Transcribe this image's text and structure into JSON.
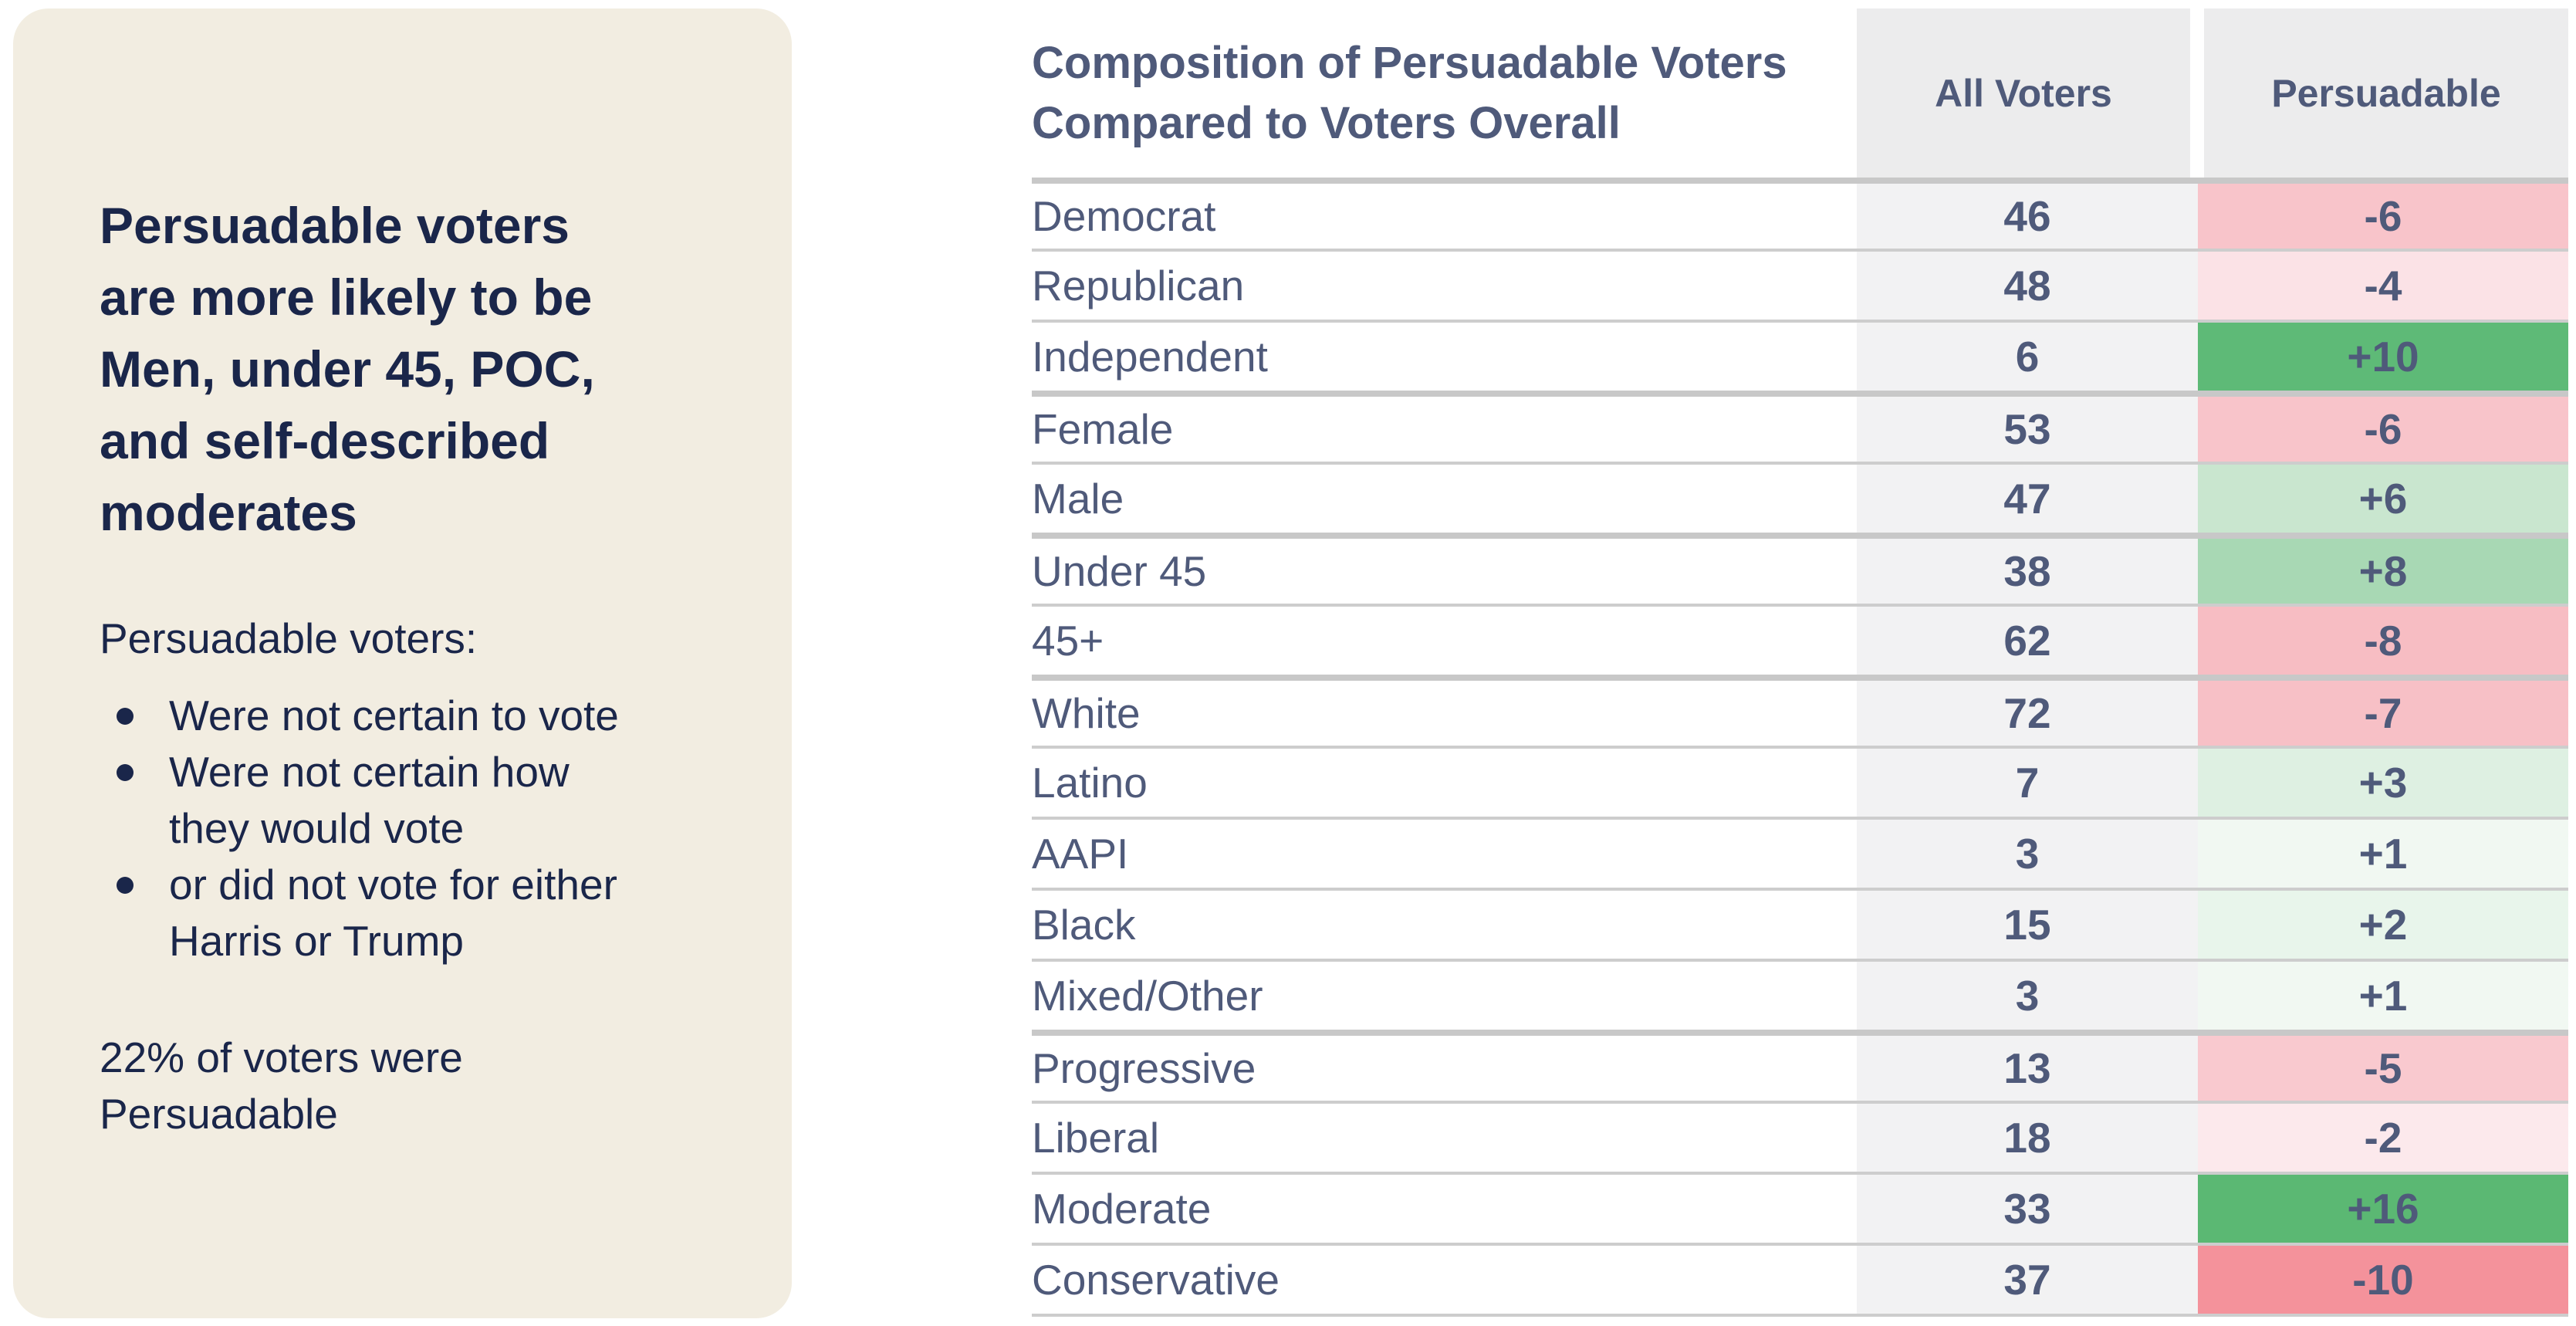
{
  "sidebar": {
    "heading_lines": [
      "Persuadable voters",
      "are more likely to be",
      "Men, under 45, POC,",
      "and self-described",
      "moderates"
    ],
    "intro": "Persuadable voters:",
    "bullets": [
      [
        "Were not certain to vote"
      ],
      [
        "Were not certain how",
        "they would vote"
      ],
      [
        "or did not vote for either",
        "Harris or Trump"
      ]
    ],
    "footnote_lines": [
      "22% of voters were",
      "Persuadable"
    ]
  },
  "table": {
    "title_lines": [
      "Composition of Persuadable Voters",
      "Compared to Voters Overall"
    ],
    "col_all": "All Voters",
    "col_pers": "Persuadable",
    "rows": [
      {
        "label": "Democrat",
        "all": "46",
        "delta": "-6",
        "bg": "#f8c4ca",
        "group_start": true
      },
      {
        "label": "Republican",
        "all": "48",
        "delta": "-4",
        "bg": "#fbe2e6",
        "group_start": false
      },
      {
        "label": "Independent",
        "all": "6",
        "delta": "+10",
        "bg": "#5eba77",
        "group_start": false
      },
      {
        "label": "Female",
        "all": "53",
        "delta": "-6",
        "bg": "#f8c4ca",
        "group_start": true
      },
      {
        "label": "Male",
        "all": "47",
        "delta": "+6",
        "bg": "#c9e6cf",
        "group_start": false
      },
      {
        "label": "Under 45",
        "all": "38",
        "delta": "+8",
        "bg": "#a8d8b4",
        "group_start": true
      },
      {
        "label": "45+",
        "all": "62",
        "delta": "-8",
        "bg": "#f7bdc3",
        "group_start": false
      },
      {
        "label": "White",
        "all": "72",
        "delta": "-7",
        "bg": "#f7c0c6",
        "group_start": true
      },
      {
        "label": "Latino",
        "all": "7",
        "delta": "+3",
        "bg": "#def0e2",
        "group_start": false
      },
      {
        "label": "AAPI",
        "all": "3",
        "delta": "+1",
        "bg": "#f1f8f2",
        "group_start": false
      },
      {
        "label": "Black",
        "all": "15",
        "delta": "+2",
        "bg": "#e8f5eb",
        "group_start": false
      },
      {
        "label": "Mixed/Other",
        "all": "3",
        "delta": "+1",
        "bg": "#f1f8f2",
        "group_start": false
      },
      {
        "label": "Progressive",
        "all": "13",
        "delta": "-5",
        "bg": "#f9c9cf",
        "group_start": true
      },
      {
        "label": "Liberal",
        "all": "18",
        "delta": "-2",
        "bg": "#fce9ec",
        "group_start": false
      },
      {
        "label": "Moderate",
        "all": "33",
        "delta": "+16",
        "bg": "#5bb873",
        "group_start": false
      },
      {
        "label": "Conservative",
        "all": "37",
        "delta": "-10",
        "bg": "#f4929b",
        "group_start": false
      }
    ]
  },
  "colors": {
    "card_bg": "#f2ede1",
    "navy": "#1a264a",
    "slate": "#4f5a7a",
    "header_cell_bg": "#ececed",
    "value_cell_bg": "#f2f2f3",
    "separator_thin": "#cdcdcd",
    "separator_thick": "#c8c8c8",
    "positive_strong": "#5bb873",
    "negative_strong": "#f4929b"
  },
  "chart_data": {
    "type": "table",
    "title": "Composition of Persuadable Voters Compared to Voters Overall",
    "categories": [
      "Democrat",
      "Republican",
      "Independent",
      "Female",
      "Male",
      "Under 45",
      "45+",
      "White",
      "Latino",
      "AAPI",
      "Black",
      "Mixed/Other",
      "Progressive",
      "Liberal",
      "Moderate",
      "Conservative"
    ],
    "series": [
      {
        "name": "All Voters",
        "values": [
          46,
          48,
          6,
          53,
          47,
          38,
          62,
          72,
          7,
          3,
          15,
          3,
          13,
          18,
          33,
          37
        ]
      },
      {
        "name": "Persuadable (difference vs. all voters)",
        "values": [
          -6,
          -4,
          10,
          -6,
          6,
          8,
          -8,
          -7,
          3,
          1,
          2,
          1,
          -5,
          -2,
          16,
          -10
        ]
      }
    ],
    "row_groups": [
      [
        "Democrat",
        "Republican",
        "Independent"
      ],
      [
        "Female",
        "Male"
      ],
      [
        "Under 45",
        "45+"
      ],
      [
        "White",
        "Latino",
        "AAPI",
        "Black",
        "Mixed/Other"
      ],
      [
        "Progressive",
        "Liberal",
        "Moderate",
        "Conservative"
      ]
    ],
    "annotations": [
      "Persuadable voters are more likely to be Men, under 45, POC, and self-described moderates",
      "Persuadable voters: Were not certain to vote; Were not certain how they would vote; or did not vote for either Harris or Trump",
      "22% of voters were Persuadable"
    ],
    "legend_position": "none",
    "color_coding": "green = overrepresented among persuadable voters, red = underrepresented"
  }
}
